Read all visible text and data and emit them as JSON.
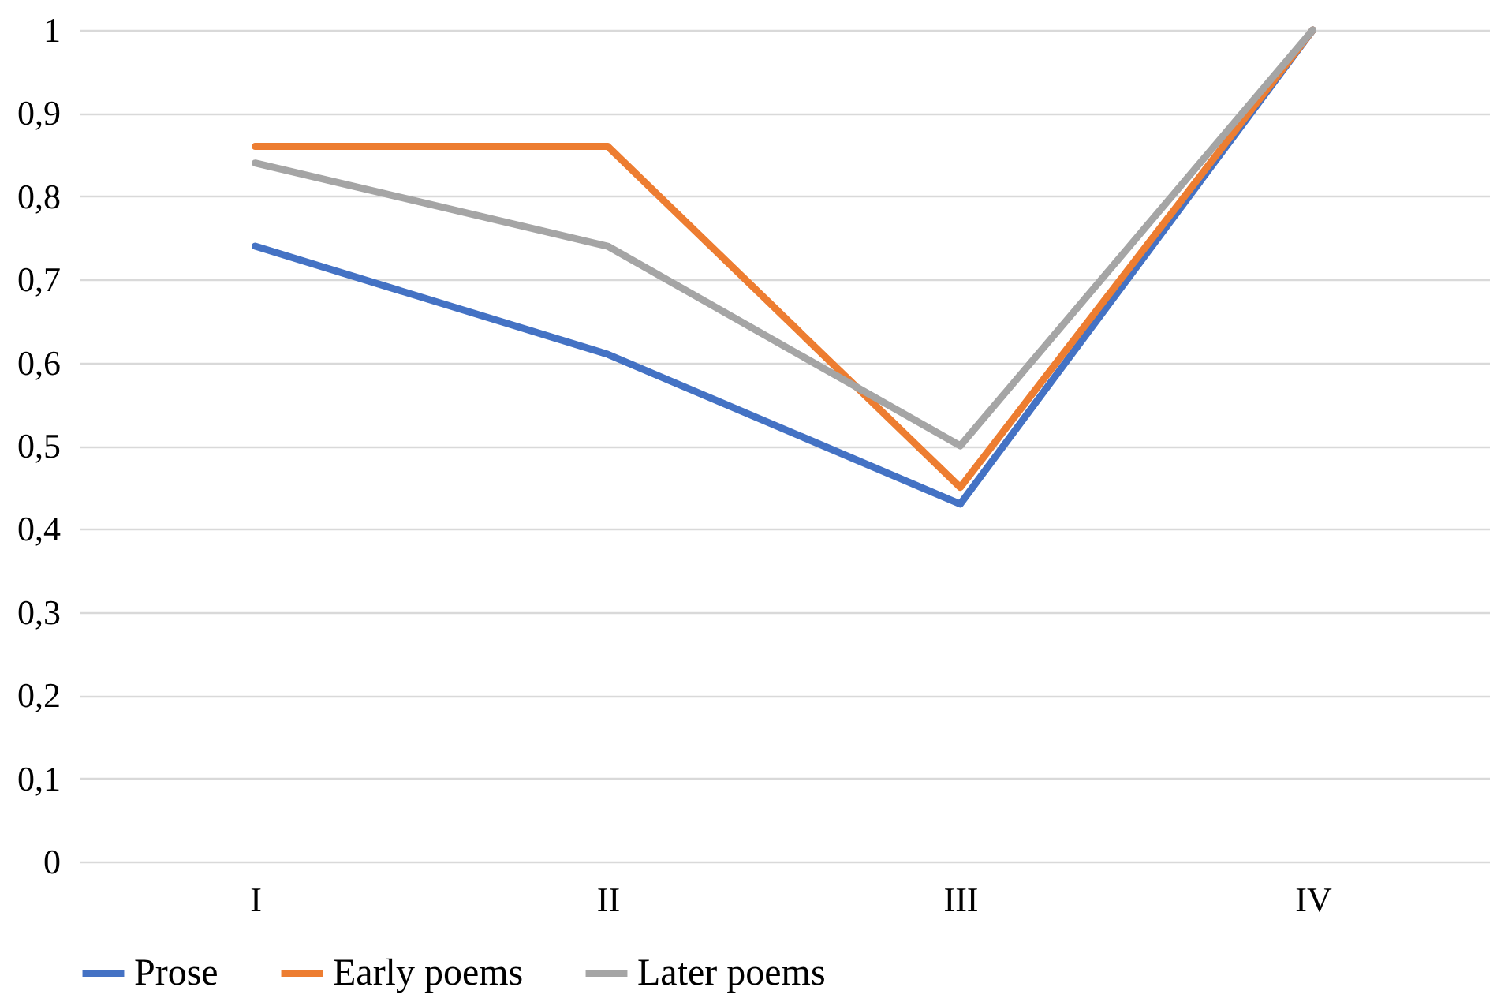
{
  "chart_data": {
    "type": "line",
    "categories": [
      "I",
      "II",
      "III",
      "IV"
    ],
    "series": [
      {
        "name": "Prose",
        "color": "#4472c4",
        "values": [
          0.74,
          0.61,
          0.43,
          1
        ]
      },
      {
        "name": "Early poems",
        "color": "#ed7d31",
        "values": [
          0.86,
          0.86,
          0.45,
          1
        ]
      },
      {
        "name": "Later poems",
        "color": "#a5a5a5",
        "values": [
          0.84,
          0.74,
          0.5,
          1
        ]
      }
    ],
    "ylim": [
      0,
      1
    ],
    "yticks": [
      0,
      {
        "value": 0.1,
        "label": "0,1"
      },
      {
        "value": 0.2,
        "label": "0,2"
      },
      {
        "value": 0.3,
        "label": "0,3"
      },
      {
        "value": 0.4,
        "label": "0,4"
      },
      {
        "value": 0.5,
        "label": "0,5"
      },
      {
        "value": 0.6,
        "label": "0,6"
      },
      {
        "value": 0.7,
        "label": "0,7"
      },
      {
        "value": 0.8,
        "label": "0,8"
      },
      {
        "value": 0.9,
        "label": "0,9"
      },
      1
    ],
    "grid": "y",
    "legend": "bottom",
    "marker": "none",
    "line_style": "solid"
  }
}
